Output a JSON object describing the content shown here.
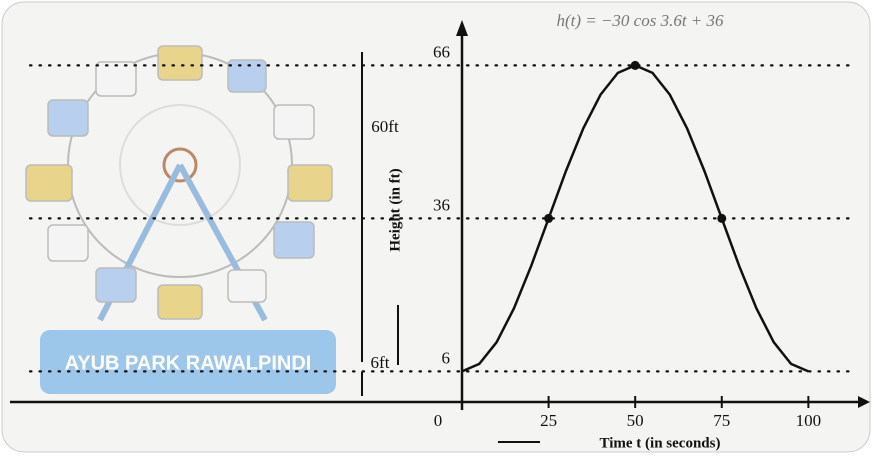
{
  "chart_data": {
    "type": "line",
    "formula": "h(t) = −30 cos 3.6t + 36",
    "x": [
      0,
      5,
      10,
      15,
      20,
      25,
      30,
      35,
      40,
      45,
      50,
      55,
      60,
      65,
      70,
      75,
      80,
      85,
      90,
      95,
      100
    ],
    "values": [
      6,
      7.47,
      11.73,
      18.37,
      26.73,
      36,
      45.27,
      53.63,
      60.27,
      64.53,
      66,
      64.53,
      60.27,
      53.63,
      45.27,
      36,
      26.73,
      18.37,
      11.73,
      7.47,
      6
    ],
    "color": "#111111",
    "points": {
      "x": [
        25,
        50,
        75
      ],
      "values": [
        36,
        66,
        36
      ]
    },
    "xlim": [
      0,
      110
    ],
    "ylim": [
      0,
      70
    ],
    "xticks": [
      0,
      25,
      50,
      75,
      100
    ],
    "yticks": [
      6,
      36,
      66
    ],
    "grid": true,
    "xlabel": "Time t (in seconds)",
    "ylabel": "Height (in ft)",
    "annotations": [
      "60ft",
      "6ft"
    ],
    "sign": "AYUB PARK RAWALPINDI"
  }
}
